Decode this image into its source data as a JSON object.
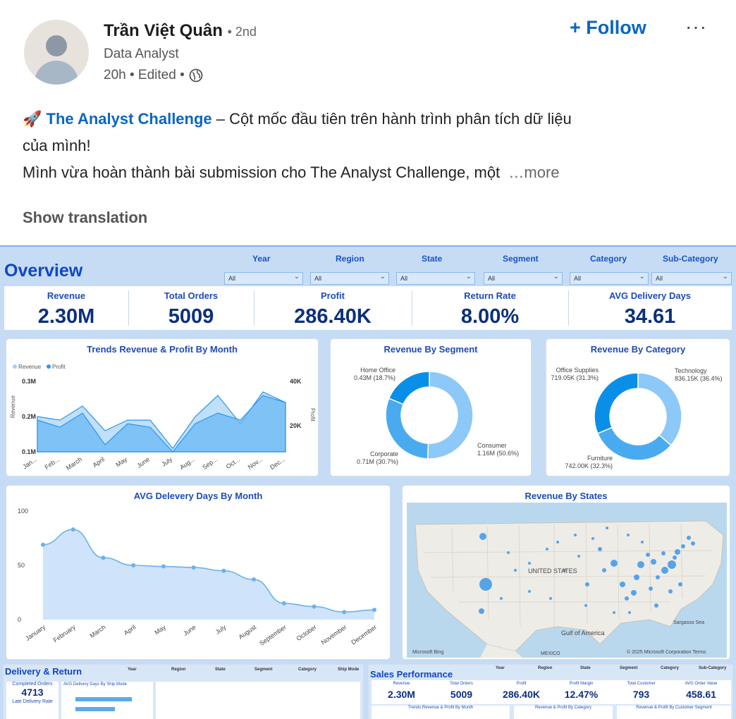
{
  "author": {
    "name": "Trần Việt Quân",
    "degree": "• 2nd",
    "headline": "Data Analyst",
    "meta": "20h • Edited •"
  },
  "actions": {
    "follow": "+ Follow",
    "more": "···"
  },
  "post": {
    "emoji": "🚀",
    "highlight": "The Analyst Challenge",
    "line1": " – Cột mốc đầu tiên trên hành trình phân tích dữ liệu",
    "line2": "của mình!",
    "line3": "Mình vừa hoàn thành bài submission cho The Analyst Challenge, một",
    "more": "…more",
    "translate": "Show translation"
  },
  "dashboard": {
    "title": "Overview",
    "filters": [
      {
        "label": "Year",
        "value": "All"
      },
      {
        "label": "Region",
        "value": "All"
      },
      {
        "label": "State",
        "value": "All"
      },
      {
        "label": "Segment",
        "value": "All"
      },
      {
        "label": "Category",
        "value": "All"
      },
      {
        "label": "Sub-Category",
        "value": "All"
      }
    ],
    "kpis": [
      {
        "label": "Revenue",
        "value": "2.30M"
      },
      {
        "label": "Total Orders",
        "value": "5009"
      },
      {
        "label": "Profit",
        "value": "286.40K"
      },
      {
        "label": "Return Rate",
        "value": "8.00%"
      },
      {
        "label": "AVG Delivery Days",
        "value": "34.61"
      }
    ],
    "map": {
      "title": "Revenue By States",
      "country": "UNITED STATES",
      "gulf": "Gulf of America",
      "mexico": "MEXICO",
      "copyright": "© 2025 Microsoft Corporation Terms",
      "brand": "Microsoft Bing",
      "sea": "Sargasso Sea"
    },
    "bottom_left": {
      "title": "Delivery & Return",
      "kpi1_label": "Completed Orders",
      "kpi1_value": "4713",
      "kpi2_label": "Late Delivery Rate",
      "chart_title": "AVG Delivery Days By Ship Mode",
      "filters": [
        "Year",
        "Region",
        "State",
        "Segment",
        "Category",
        "Ship Mode"
      ]
    },
    "bottom_right": {
      "title": "Sales Performance",
      "filters": [
        "Year",
        "Region",
        "State",
        "Segment",
        "Category",
        "Sub-Category"
      ],
      "kpis": [
        {
          "label": "Revenue",
          "value": "2.30M"
        },
        {
          "label": "Total Orders",
          "value": "5009"
        },
        {
          "label": "Profit",
          "value": "286.40K"
        },
        {
          "label": "Profit Margin",
          "value": "12.47%"
        },
        {
          "label": "Total Customer",
          "value": "793"
        },
        {
          "label": "AVG Order Value",
          "value": "458.61"
        }
      ],
      "subtitles": [
        "Trends Revenue & Profit By Month",
        "Revenue & Profit By Category",
        "Revenue & Profit By Customer Segment"
      ]
    }
  },
  "chart_data": [
    {
      "type": "area",
      "title": "Trends Revenue & Profit By Month",
      "ylabel": "Revenue",
      "y2label": "Profit",
      "legend": [
        "Revenue",
        "Profit"
      ],
      "categories": [
        "Jan...",
        "Feb...",
        "March",
        "April",
        "May",
        "June",
        "July",
        "Aug...",
        "Sep...",
        "Oct...",
        "Nov...",
        "Dec..."
      ],
      "yticks": [
        "0.3M",
        "0.2M",
        "0.1M"
      ],
      "y2ticks": [
        "40K",
        "20K"
      ],
      "series": [
        {
          "name": "Revenue",
          "values": [
            0.2,
            0.19,
            0.23,
            0.16,
            0.19,
            0.19,
            0.11,
            0.2,
            0.26,
            0.18,
            0.27,
            0.24
          ]
        },
        {
          "name": "Profit",
          "values": [
            0.19,
            0.17,
            0.21,
            0.12,
            0.18,
            0.17,
            0.1,
            0.18,
            0.21,
            0.19,
            0.26,
            0.24
          ]
        }
      ]
    },
    {
      "type": "pie",
      "title": "Revenue By Segment",
      "slices": [
        {
          "label": "Consumer",
          "text": "1.16M (50.6%)",
          "value": 50.6,
          "color": "#8cc8f8"
        },
        {
          "label": "Corporate",
          "text": "0.71M (30.7%)",
          "value": 30.7,
          "color": "#4aaaf0"
        },
        {
          "label": "Home Office",
          "text": "0.43M (18.7%)",
          "value": 18.7,
          "color": "#0a8fe8"
        }
      ]
    },
    {
      "type": "pie",
      "title": "Revenue By Category",
      "slices": [
        {
          "label": "Technology",
          "text": "836.15K (36.4%)",
          "value": 36.4,
          "color": "#8cc8f8"
        },
        {
          "label": "Furniture",
          "text": "742.00K (32.3%)",
          "value": 32.3,
          "color": "#4aaaf0"
        },
        {
          "label": "Office Supplies",
          "text": "719.05K (31.3%)",
          "value": 31.3,
          "color": "#0a8fe8"
        }
      ]
    },
    {
      "type": "area",
      "title": "AVG Delevery Days By Month",
      "categories": [
        "January",
        "February",
        "March",
        "April",
        "May",
        "June",
        "July",
        "August",
        "September",
        "October",
        "November",
        "December"
      ],
      "yticks": [
        0,
        50,
        100
      ],
      "ylim": [
        0,
        100
      ],
      "values": [
        69,
        83,
        57,
        50,
        49,
        48,
        45,
        37,
        15,
        12,
        7,
        9
      ]
    }
  ]
}
